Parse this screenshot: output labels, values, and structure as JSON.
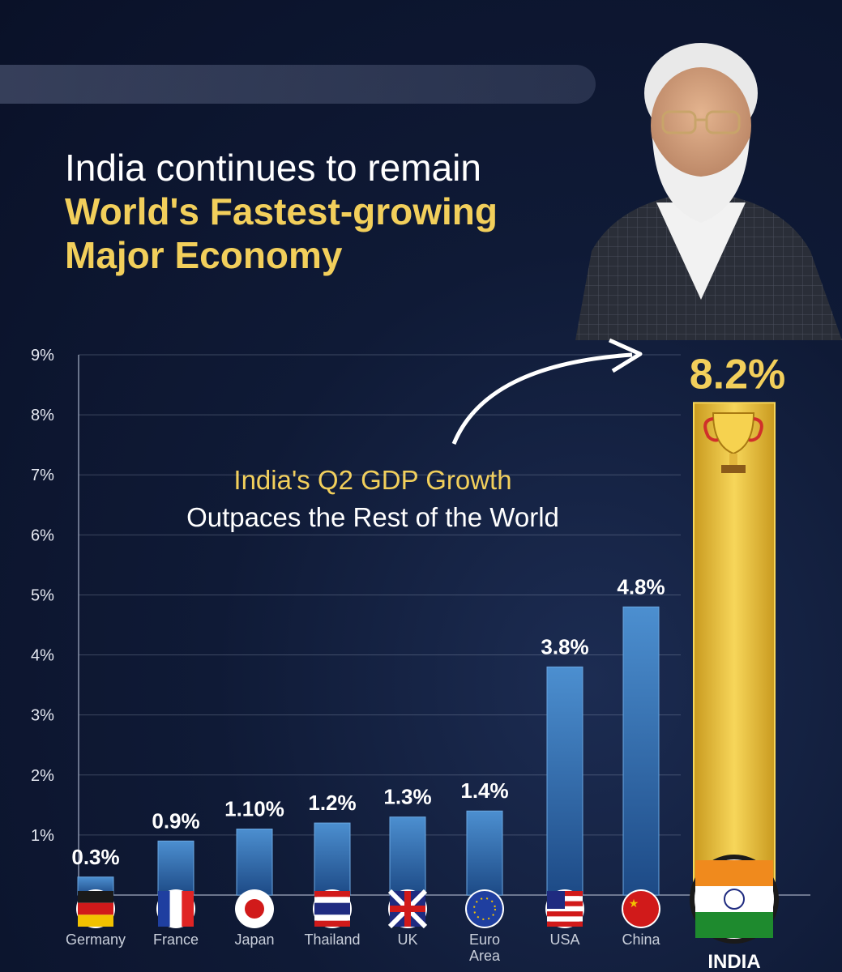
{
  "headline": {
    "line1": "India continues to remain",
    "line2": "World's Fastest-growing",
    "line3": "Major Economy"
  },
  "subtitle": {
    "line1": "India's Q2 GDP Growth",
    "line2": "Outpaces the Rest of the World"
  },
  "icons": {
    "trophy": "trophy-icon",
    "arrow": "curved-arrow-icon",
    "portrait": "leader-portrait"
  },
  "colors": {
    "bar_blue": "#3f7fc0",
    "bar_gold": "#f3c83c",
    "accent_yellow": "#f2cf5b",
    "background": "#0f1a36"
  },
  "chart_data": {
    "type": "bar",
    "title": "India's Q2 GDP Growth Outpaces the Rest of the World",
    "ylabel": "",
    "xlabel": "",
    "ylim": [
      0,
      9
    ],
    "yticks": [
      "1%",
      "2%",
      "3%",
      "4%",
      "5%",
      "6%",
      "7%",
      "8%",
      "9%"
    ],
    "grid": true,
    "categories": [
      "Germany",
      "France",
      "Japan",
      "Thailand",
      "UK",
      "Euro Area",
      "USA",
      "China",
      "INDIA"
    ],
    "category_lines": [
      [
        "Germany"
      ],
      [
        "France"
      ],
      [
        "Japan"
      ],
      [
        "Thailand"
      ],
      [
        "UK"
      ],
      [
        "Euro",
        "Area"
      ],
      [
        "USA"
      ],
      [
        "China"
      ],
      [
        "INDIA"
      ]
    ],
    "values": [
      0.3,
      0.9,
      1.1,
      1.2,
      1.3,
      1.4,
      3.8,
      4.8,
      8.2
    ],
    "value_labels": [
      "0.3%",
      "0.9%",
      "1.10%",
      "1.2%",
      "1.3%",
      "1.4%",
      "3.8%",
      "4.8%",
      "8.2%"
    ],
    "highlight": "INDIA"
  }
}
